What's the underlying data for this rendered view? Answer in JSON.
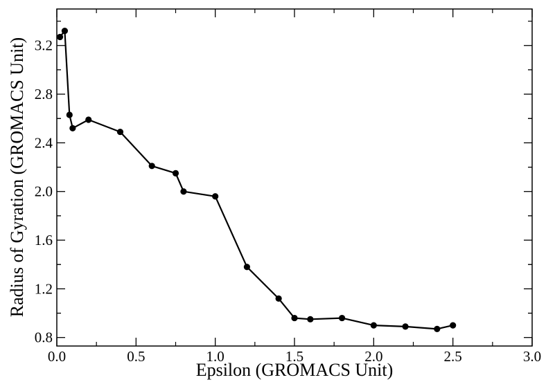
{
  "chart_data": {
    "type": "line",
    "xlabel": "Epsilon (GROMACS Unit)",
    "ylabel": "Radius of Gyration (GROMACS Unit)",
    "xlim": [
      0.0,
      3.0
    ],
    "ylim": [
      0.73,
      3.5
    ],
    "x_ticks": [
      0.0,
      0.5,
      1.0,
      1.5,
      2.0,
      2.5,
      3.0
    ],
    "x_tick_labels": [
      "0.0",
      "0.5",
      "1.0",
      "1.5",
      "2.0",
      "2.5",
      "3.0"
    ],
    "y_ticks": [
      0.8,
      1.2,
      1.6,
      2.0,
      2.4,
      2.8,
      3.2
    ],
    "y_tick_labels": [
      "0.8",
      "1.2",
      "1.6",
      "2.0",
      "2.4",
      "2.8",
      "3.2"
    ],
    "grid": false,
    "legend": "none",
    "series": [
      {
        "color": "#000000",
        "marker": "circle",
        "x": [
          0.02,
          0.05,
          0.08,
          0.1,
          0.2,
          0.4,
          0.6,
          0.75,
          0.8,
          1.0,
          1.2,
          1.4,
          1.5,
          1.6,
          1.8,
          2.0,
          2.2,
          2.4,
          2.5
        ],
        "y": [
          3.27,
          3.32,
          2.63,
          2.52,
          2.59,
          2.49,
          2.21,
          2.15,
          2.0,
          1.96,
          1.38,
          1.12,
          0.96,
          0.95,
          0.96,
          0.9,
          0.89,
          0.87,
          0.9
        ]
      }
    ]
  }
}
